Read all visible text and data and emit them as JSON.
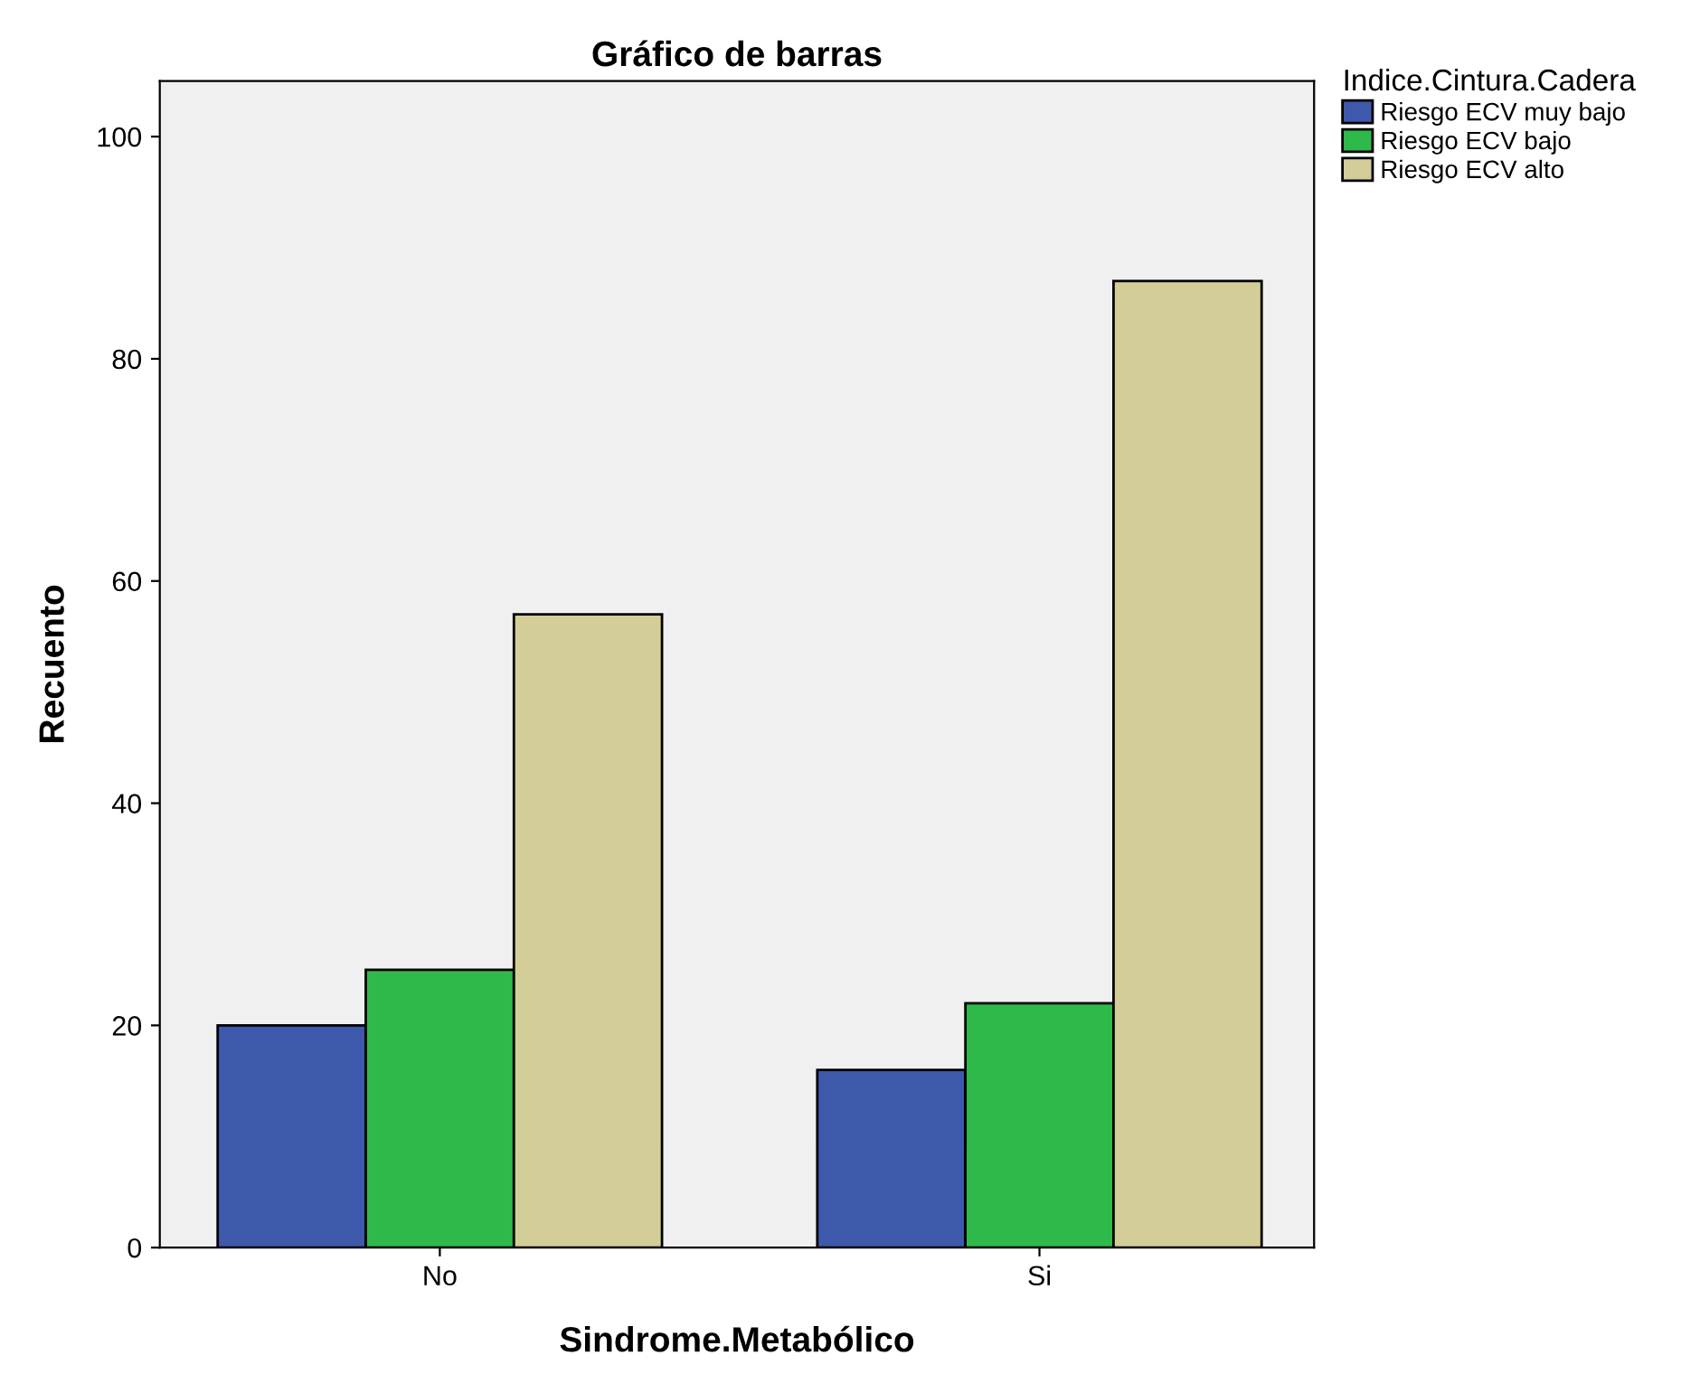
{
  "chart_data": {
    "type": "bar",
    "title": "Gráfico de barras",
    "xlabel": "Sindrome.Metabólico",
    "ylabel": "Recuento",
    "legend_title": "Indice.Cintura.Cadera",
    "categories": [
      "No",
      "Si"
    ],
    "series": [
      {
        "name": "Riesgo ECV muy bajo",
        "color": "#3e58ac",
        "values": [
          20,
          16
        ]
      },
      {
        "name": "Riesgo ECV bajo",
        "color": "#2fb94a",
        "values": [
          25,
          22
        ]
      },
      {
        "name": "Riesgo ECV alto",
        "color": "#d3ce97",
        "values": [
          57,
          87
        ]
      }
    ],
    "ylim": [
      0,
      105
    ],
    "yticks": [
      0,
      20,
      40,
      60,
      80,
      100
    ],
    "grid": false,
    "legend": "top right"
  }
}
